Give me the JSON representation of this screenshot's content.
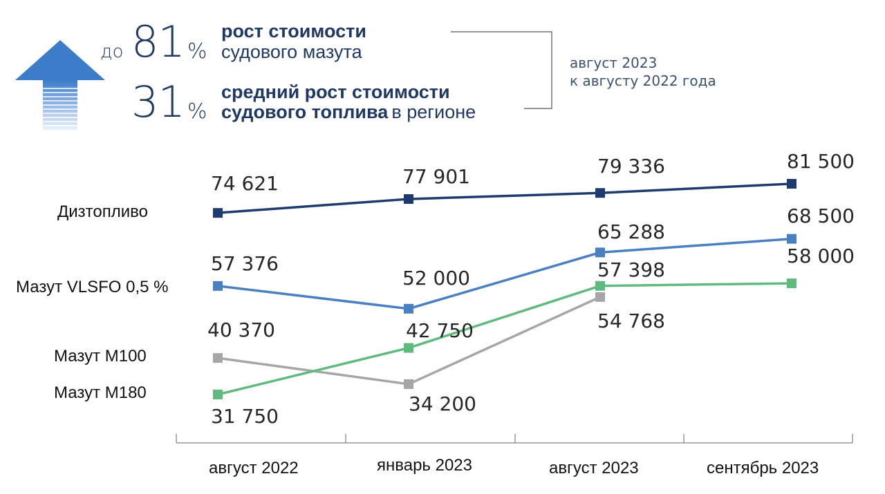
{
  "header": {
    "row1": {
      "prefix": "до",
      "number": "81",
      "percent": "%",
      "bold": "рост стоимости",
      "light": "судового мазута"
    },
    "row2": {
      "number": "31",
      "percent": "%",
      "bold_line1": "средний рост стоимости",
      "bold_line2": "судового топлива",
      "light_tail": "в регионе"
    },
    "note_line1": "август 2023",
    "note_line2": "к августу 2022 года"
  },
  "colors": {
    "diesel": "#1f3a6e",
    "vlsfo": "#4a7fc1",
    "m100": "#a6a6a6",
    "m180": "#5fba7d",
    "arrow": "#3d7cc9"
  },
  "chart_data": {
    "type": "line",
    "categories": [
      "август 2022",
      "январь 2023",
      "август 2023",
      "сентябрь 2023"
    ],
    "series": [
      {
        "name": "Дизтопливо",
        "values": [
          74621,
          77901,
          79336,
          81500
        ],
        "labels": [
          "74 621",
          "77 901",
          "79 336",
          "81 500"
        ]
      },
      {
        "name": "Мазут  VLSFO 0,5 %",
        "values": [
          57376,
          52000,
          65288,
          68500
        ],
        "labels": [
          "57 376",
          "52 000",
          "65 288",
          "68 500"
        ]
      },
      {
        "name": "Мазут М100",
        "values": [
          40370,
          34200,
          54768,
          null
        ],
        "labels": [
          "40 370",
          "34 200",
          "54 768",
          ""
        ]
      },
      {
        "name": "Мазут М180",
        "values": [
          31750,
          42750,
          57398,
          58000
        ],
        "labels": [
          "31 750",
          "42 750",
          "57 398",
          "58 000"
        ]
      }
    ]
  }
}
